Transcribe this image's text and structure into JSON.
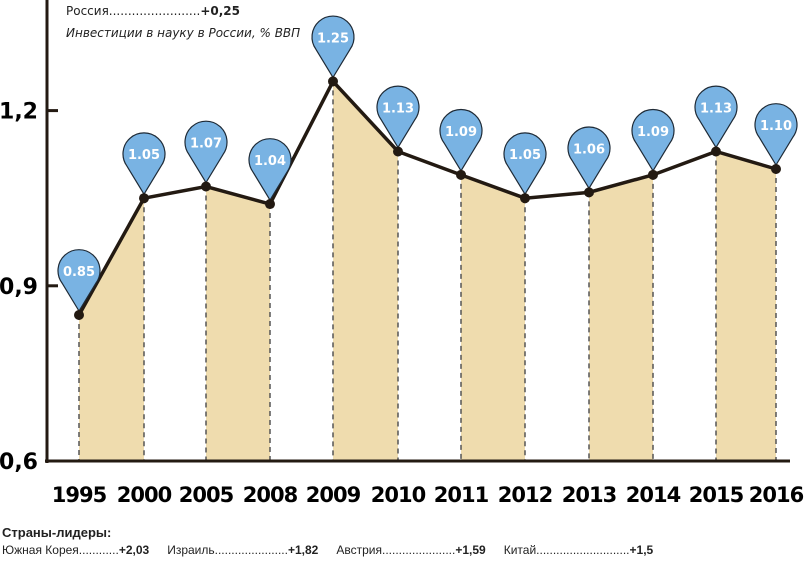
{
  "header": {
    "country": "Россия",
    "dots": "........................",
    "value": "+0,25",
    "subtitle": "Инвестиции в науку в России, % ВВП"
  },
  "chart_data": {
    "type": "line",
    "title": "Инвестиции в науку в России, % ВВП",
    "categories": [
      "1995",
      "2000",
      "2005",
      "2008",
      "2009",
      "2010",
      "2011",
      "2012",
      "2013",
      "2014",
      "2015",
      "2016"
    ],
    "values": [
      0.85,
      1.05,
      1.07,
      1.04,
      1.25,
      1.13,
      1.09,
      1.05,
      1.06,
      1.09,
      1.13,
      1.1
    ],
    "labels": [
      "0.85",
      "1.05",
      "1.07",
      "1.04",
      "1.25",
      "1.13",
      "1.09",
      "1.05",
      "1.06",
      "1.09",
      "1.13",
      "1.10"
    ],
    "yticks": [
      {
        "v": 0.6,
        "label": "0,6"
      },
      {
        "v": 0.9,
        "label": "0,9"
      },
      {
        "v": 1.2,
        "label": "1,2"
      }
    ],
    "ylim": [
      0.6,
      1.3
    ],
    "grid": false,
    "colors": {
      "line": "#231a12",
      "fill": "#efdcae",
      "pin": "#79b3e3",
      "text": "#ffffff"
    }
  },
  "footer": {
    "title": "Страны-лидеры:",
    "items": [
      {
        "name": "Южная Корея",
        "dots": "............",
        "value": "+2,03"
      },
      {
        "name": "Израиль",
        "dots": "......................",
        "value": "+1,82"
      },
      {
        "name": "Австрия",
        "dots": "......................",
        "value": "+1,59"
      },
      {
        "name": "Китай",
        "dots": "............................",
        "value": "+1,5"
      }
    ]
  }
}
